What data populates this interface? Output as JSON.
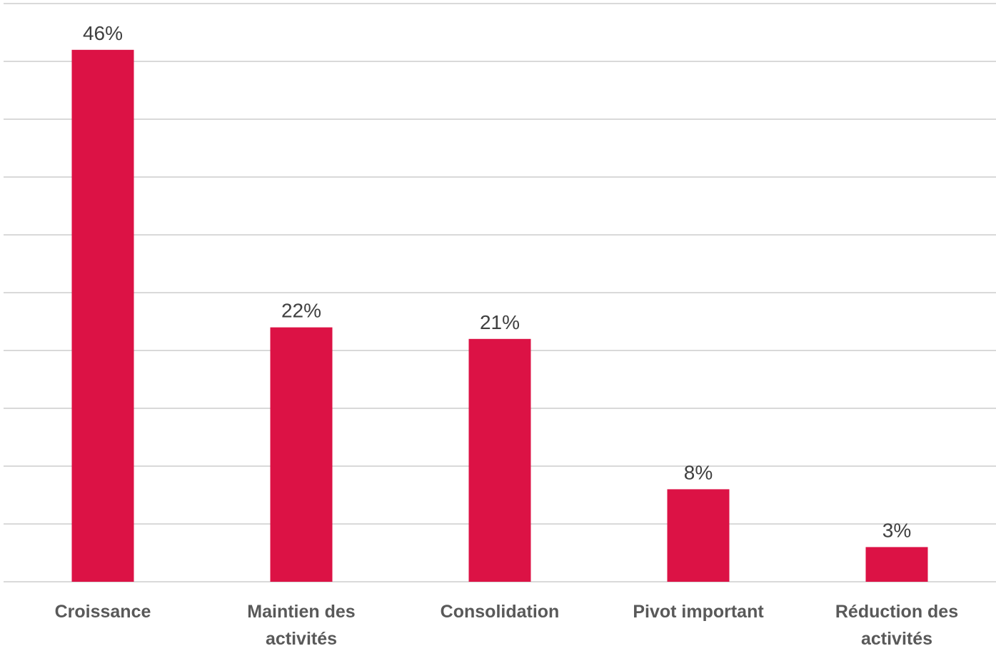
{
  "chart_data": {
    "type": "bar",
    "categories": [
      [
        "Croissance"
      ],
      [
        "Maintien des",
        "activités"
      ],
      [
        "Consolidation"
      ],
      [
        "Pivot important"
      ],
      [
        "Réduction des",
        "activités"
      ]
    ],
    "values": [
      46,
      22,
      21,
      8,
      3
    ],
    "value_labels": [
      "46%",
      "22%",
      "21%",
      "8%",
      "3%"
    ],
    "ylim": [
      0,
      50
    ],
    "grid": true,
    "bar_color": "#dc1245"
  }
}
